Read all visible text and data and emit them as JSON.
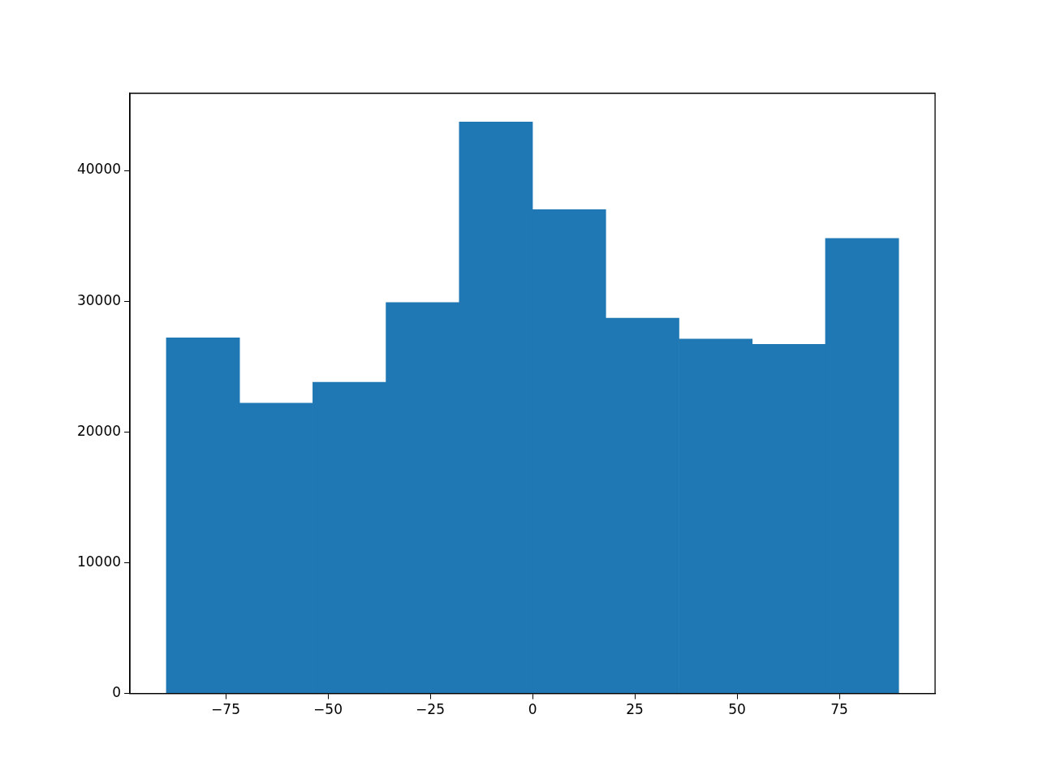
{
  "chart_data": {
    "type": "histogram",
    "color": "#1f77b4",
    "bins": [
      -89.5,
      -71.6,
      -53.7,
      -35.8,
      -17.9,
      0,
      17.9,
      35.8,
      53.7,
      71.6,
      89.5
    ],
    "values": [
      27200,
      22200,
      23800,
      29900,
      43700,
      37000,
      28700,
      27100,
      26700,
      34800
    ],
    "xlim": [
      -98.4,
      98.4
    ],
    "xticks": [
      {
        "value": -75,
        "label": "−75"
      },
      {
        "value": -50,
        "label": "−50"
      },
      {
        "value": -25,
        "label": "−25"
      },
      0,
      25,
      50,
      75
    ],
    "ylim": [
      0,
      45900
    ],
    "yticks": [
      0,
      10000,
      20000,
      30000,
      40000
    ],
    "grid": false,
    "legend": false
  }
}
